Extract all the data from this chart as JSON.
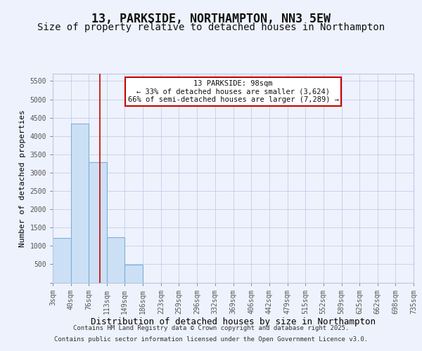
{
  "title": "13, PARKSIDE, NORTHAMPTON, NN3 5EW",
  "subtitle": "Size of property relative to detached houses in Northampton",
  "xlabel": "Distribution of detached houses by size in Northampton",
  "ylabel": "Number of detached properties",
  "bar_color": "#cce0f5",
  "bar_edgecolor": "#7ab0d8",
  "line_color": "#cc0000",
  "annotation_line1": "13 PARKSIDE: 98sqm",
  "annotation_line2": "← 33% of detached houses are smaller (3,624)",
  "annotation_line3": "66% of semi-detached houses are larger (7,289) →",
  "annotation_box_color": "#ffffff",
  "annotation_edge_color": "#cc0000",
  "property_size": 98,
  "bins": [
    3,
    40,
    76,
    113,
    149,
    186,
    223,
    259,
    296,
    332,
    369,
    406,
    442,
    479,
    515,
    552,
    589,
    625,
    662,
    698,
    735
  ],
  "counts": [
    1220,
    4340,
    3290,
    1240,
    490,
    0,
    0,
    0,
    0,
    0,
    0,
    0,
    0,
    0,
    0,
    0,
    0,
    0,
    0,
    0
  ],
  "ylim": [
    0,
    5700
  ],
  "yticks": [
    0,
    500,
    1000,
    1500,
    2000,
    2500,
    3000,
    3500,
    4000,
    4500,
    5000,
    5500
  ],
  "background_color": "#eef2fc",
  "grid_color": "#b8c8e8",
  "footer_line1": "Contains HM Land Registry data © Crown copyright and database right 2025.",
  "footer_line2": "Contains public sector information licensed under the Open Government Licence v3.0.",
  "title_fontsize": 12,
  "subtitle_fontsize": 10,
  "xlabel_fontsize": 9,
  "ylabel_fontsize": 8,
  "tick_fontsize": 7,
  "footer_fontsize": 6.5
}
